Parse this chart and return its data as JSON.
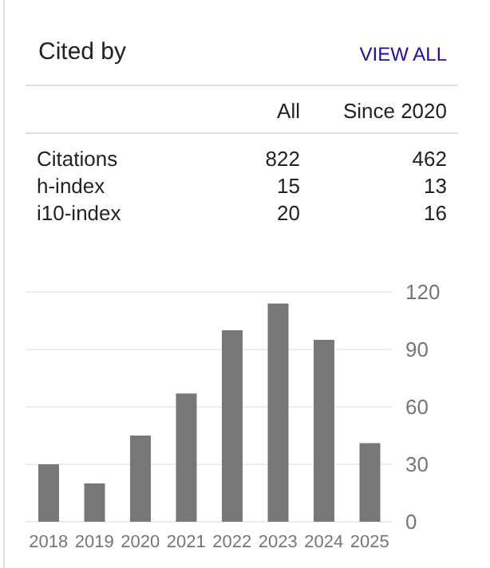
{
  "chart_data": {
    "type": "bar",
    "title": "Cited by",
    "annotations": [
      "VIEW ALL",
      "All",
      "Since 2020",
      "Citations",
      "822",
      "462",
      "h-index",
      "15",
      "13",
      "i10-index",
      "20",
      "16"
    ],
    "categories": [
      "2018",
      "2019",
      "2020",
      "2021",
      "2022",
      "2023",
      "2024",
      "2025"
    ],
    "values": [
      30,
      20,
      45,
      67,
      100,
      114,
      95,
      41
    ],
    "color": "#777777",
    "ylim": [
      0,
      120
    ],
    "yticks": [
      0,
      30,
      60,
      90,
      120
    ],
    "grid": "y"
  }
}
